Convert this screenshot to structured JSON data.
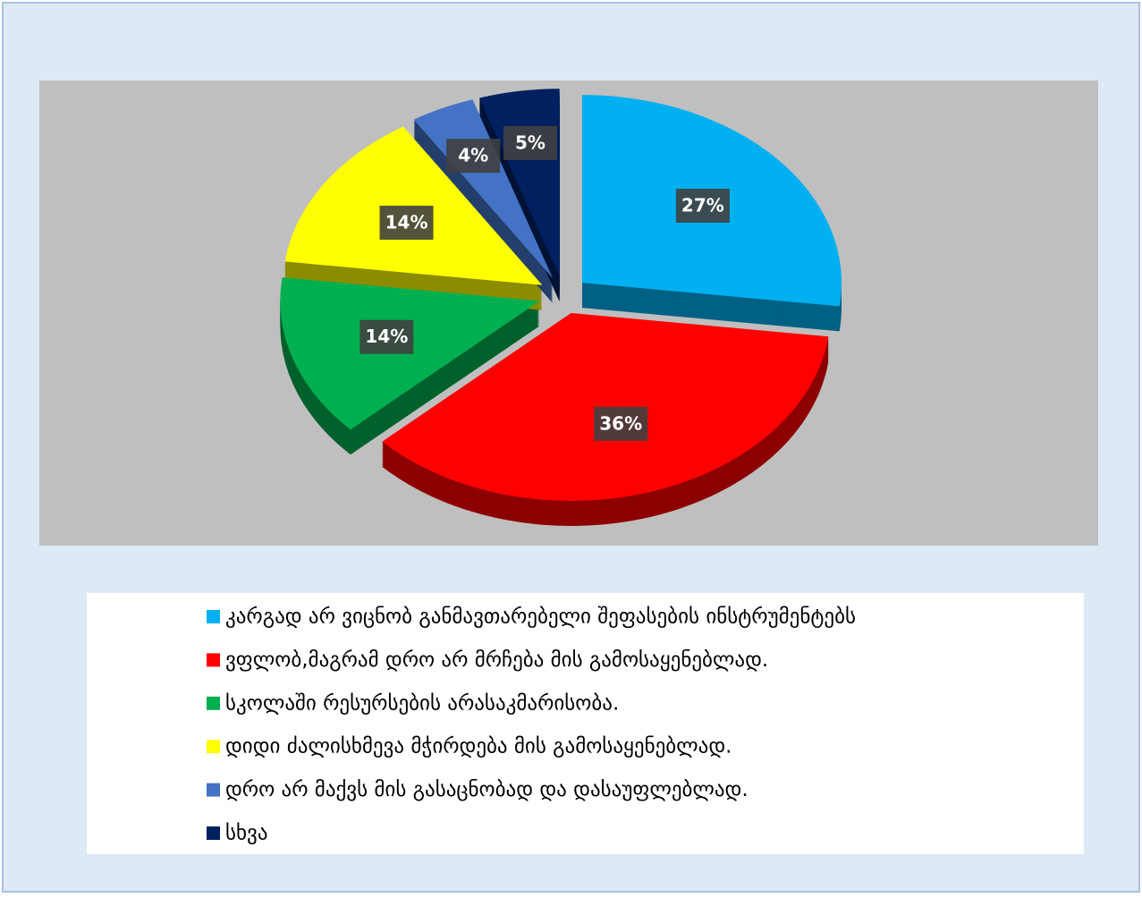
{
  "chart_data": {
    "type": "pie",
    "categories": [
      "კარგად არ ვიცნობ განმავთარებელი შეფასების ინსტრუმენტებს",
      "ვფლობ,მაგრამ დრო არ მრჩება მის გამოსაყენებლად.",
      "სკოლაში რესურსების არასაკმარისობა.",
      "დიდი ძალისხმევა მჭირდება მის გამოსაყენებლად.",
      "დრო არ მაქვს მის გასაცნობად და დასაუფლებლად.",
      "სხვა"
    ],
    "values": [
      27,
      36,
      14,
      14,
      4,
      5
    ],
    "value_labels": [
      "27%",
      "36%",
      "14%",
      "14%",
      "4%",
      "5%"
    ],
    "colors": [
      "#00b0f0",
      "#ff0000",
      "#00b050",
      "#ffff00",
      "#4472c4",
      "#002060"
    ],
    "legend": "bottom"
  }
}
